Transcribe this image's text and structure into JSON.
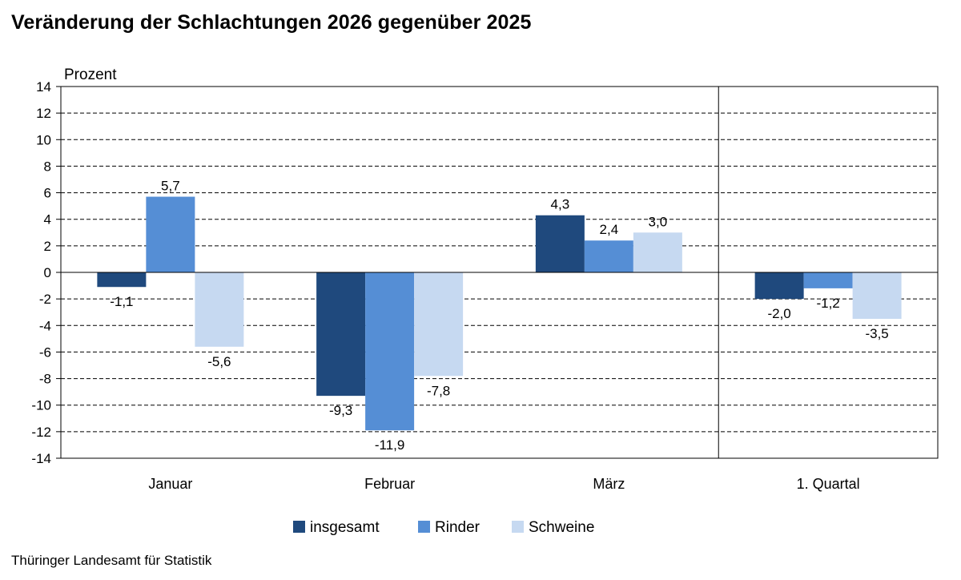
{
  "title": "Veränderung der Schlachtungen 2026 gegenüber 2025",
  "source": "Thüringer Landesamt für Statistik",
  "chart_data": {
    "type": "bar",
    "ylabel": "Prozent",
    "ylim": [
      -14,
      14
    ],
    "ytick_step": 2,
    "grid": "horizontal-dashed",
    "legend_position": "bottom",
    "categories": [
      "Januar",
      "Februar",
      "März",
      "1. Quartal"
    ],
    "series": [
      {
        "name": "insgesamt",
        "color": "#1f497d",
        "values": [
          -1.1,
          -9.3,
          4.3,
          -2.0
        ],
        "labels": [
          "-1,1",
          "-9,3",
          "4,3",
          "-2,0"
        ]
      },
      {
        "name": "Rinder",
        "color": "#558ed5",
        "values": [
          5.7,
          -11.9,
          2.4,
          -1.2
        ],
        "labels": [
          "5,7",
          "-11,9",
          "2,4",
          "-1,2"
        ]
      },
      {
        "name": "Schweine",
        "color": "#c6d9f1",
        "values": [
          -5.6,
          -7.8,
          3.0,
          -3.5
        ],
        "labels": [
          "-5,6",
          "-7,8",
          "3,0",
          "-3,5"
        ]
      }
    ],
    "separator_before_category": 3
  }
}
